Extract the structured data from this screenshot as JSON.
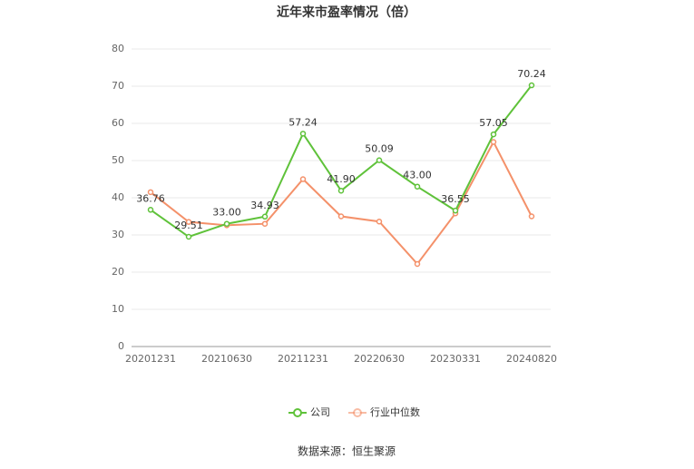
{
  "chart_data": {
    "type": "line",
    "title": "近年来市盈率情况（倍）",
    "categories": [
      "20201231",
      null,
      "20210630",
      null,
      "20211231",
      null,
      "20220630",
      null,
      "20230331",
      null,
      "20240820"
    ],
    "series": [
      {
        "name": "公司",
        "color": "#5fc23a",
        "values": [
          36.76,
          29.51,
          33.0,
          34.93,
          57.24,
          41.9,
          50.09,
          43.0,
          36.55,
          57.05,
          70.24
        ],
        "value_labels": [
          "36.76",
          "29.51",
          "33.00",
          "34.93",
          "57.24",
          "41.90",
          "50.09",
          "43.00",
          "36.55",
          "57.05",
          "70.24"
        ]
      },
      {
        "name": "行业中位数",
        "color": "#f4916a",
        "values": [
          41.5,
          33.5,
          32.6,
          33.0,
          45.0,
          35.0,
          33.6,
          22.2,
          35.8,
          55.0,
          35.0
        ]
      }
    ],
    "ylim": [
      0,
      80
    ],
    "yticks": [
      0,
      10,
      20,
      30,
      40,
      50,
      60,
      70,
      80
    ],
    "grid": true,
    "legend": "bottom",
    "source": "数据来源：恒生聚源"
  }
}
